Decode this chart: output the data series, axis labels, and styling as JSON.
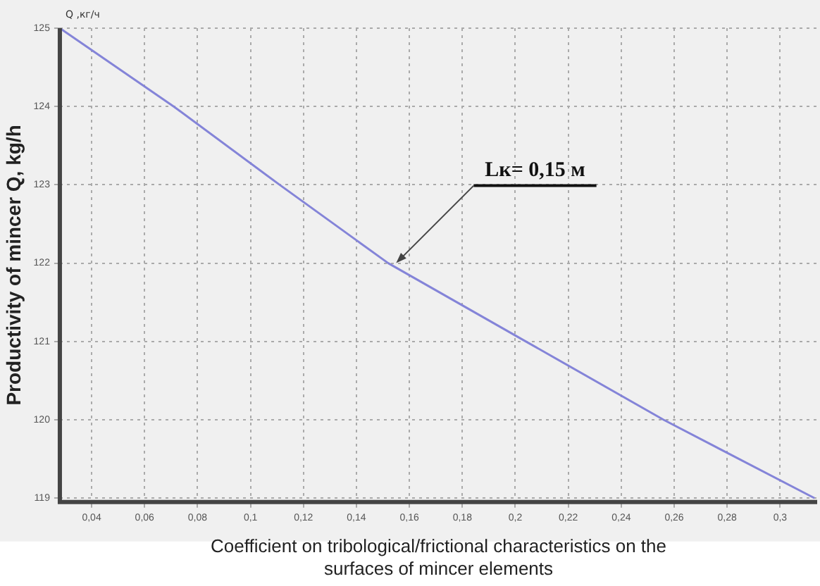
{
  "chart_data": {
    "type": "line",
    "ylabel": "Productivity of mincer Q, kg/h",
    "xlabel": "Coefficient on tribological/frictional characteristics on the surfaces of mincer elements",
    "x": [
      0.028,
      0.071,
      0.111,
      0.152,
      0.204,
      0.256,
      0.313
    ],
    "series": [
      {
        "color": "#8484d8",
        "values": [
          125,
          124,
          123,
          122,
          121,
          120,
          119
        ]
      }
    ],
    "xlim": [
      0.028,
      0.314
    ],
    "ylim": [
      118.95,
      125
    ],
    "xticks": [
      {
        "value": 0.04,
        "label": "0,04"
      },
      {
        "value": 0.06,
        "label": "0,06"
      },
      {
        "value": 0.08,
        "label": "0,08"
      },
      {
        "value": 0.1,
        "label": "0,1"
      },
      {
        "value": 0.12,
        "label": "0,12"
      },
      {
        "value": 0.14,
        "label": "0,14"
      },
      {
        "value": 0.16,
        "label": "0,16"
      },
      {
        "value": 0.18,
        "label": "0,18"
      },
      {
        "value": 0.2,
        "label": "0,2"
      },
      {
        "value": 0.22,
        "label": "0,22"
      },
      {
        "value": 0.24,
        "label": "0,24"
      },
      {
        "value": 0.26,
        "label": "0,26"
      },
      {
        "value": 0.28,
        "label": "0,28"
      },
      {
        "value": 0.3,
        "label": "0,3"
      }
    ],
    "yticks": [
      119,
      120,
      121,
      122,
      123,
      124,
      125
    ],
    "annotations": [
      "Q ,кг/ч",
      {
        "text": "Lк= 0,15 м",
        "x": 0.155,
        "y": 122
      }
    ],
    "grid": true,
    "marker": "none",
    "line_style": "solid",
    "legend": false
  }
}
